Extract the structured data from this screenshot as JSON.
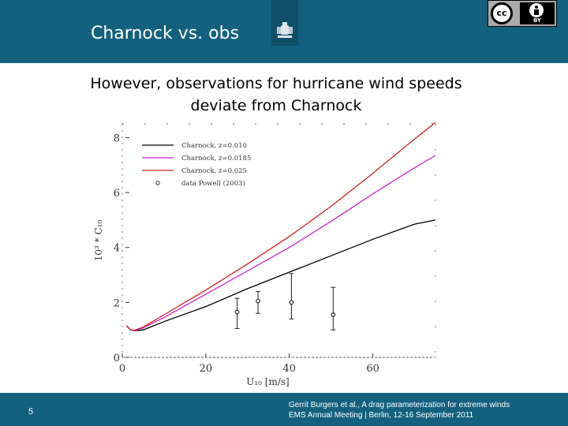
{
  "header": {
    "title": "Charnock vs. obs"
  },
  "badge": {
    "by_label": "BY"
  },
  "slide": {
    "subtitle": "However, observations for hurricane wind speeds deviate from Charnock"
  },
  "footer": {
    "page_number": "5",
    "credit_line1": "Gerrit Burgers et al., A drag parameterization for extreme winds",
    "credit_line2": "EMS Annual Meeting | Berlin, 12-16 September 2011"
  },
  "chart_data": {
    "type": "line",
    "title": "",
    "xlabel": "U₁₀ [m/s]",
    "ylabel": "10³ * C₁₀",
    "xlim": [
      0,
      75
    ],
    "ylim": [
      0,
      8.5
    ],
    "xticks": [
      0,
      20,
      40,
      60
    ],
    "yticks": [
      0,
      2,
      4,
      6,
      8
    ],
    "legend_position": "top-left",
    "series": [
      {
        "name": "Charnock, z=0.010",
        "color": "#000000",
        "x": [
          1,
          2,
          3,
          5,
          10,
          20,
          30,
          40,
          50,
          60,
          70,
          75
        ],
        "y": [
          1.15,
          1.0,
          0.97,
          1.0,
          1.3,
          1.85,
          2.5,
          3.1,
          3.7,
          4.3,
          4.85,
          5.0
        ]
      },
      {
        "name": "Charnock, z=0.0185",
        "color": "#cc22cc",
        "x": [
          1,
          2,
          3,
          5,
          10,
          20,
          30,
          40,
          50,
          60,
          70,
          75
        ],
        "y": [
          1.15,
          1.0,
          0.98,
          1.07,
          1.45,
          2.3,
          3.15,
          4.0,
          4.95,
          5.95,
          6.9,
          7.35
        ]
      },
      {
        "name": "Charnock, z=0.025",
        "color": "#cc2222",
        "x": [
          1,
          2,
          3,
          5,
          10,
          20,
          30,
          40,
          50,
          60,
          70,
          75
        ],
        "y": [
          1.15,
          1.0,
          0.99,
          1.1,
          1.55,
          2.45,
          3.4,
          4.4,
          5.5,
          6.7,
          7.95,
          8.55
        ]
      }
    ],
    "observations": {
      "name": "data Powell (2003)",
      "points": [
        {
          "x": 27.5,
          "y": 1.65,
          "err_low": 1.05,
          "err_high": 2.15
        },
        {
          "x": 32.5,
          "y": 2.05,
          "err_low": 1.6,
          "err_high": 2.4
        },
        {
          "x": 40.5,
          "y": 2.0,
          "err_low": 1.4,
          "err_high": 3.05
        },
        {
          "x": 50.5,
          "y": 1.55,
          "err_low": 1.0,
          "err_high": 2.55
        }
      ]
    }
  }
}
